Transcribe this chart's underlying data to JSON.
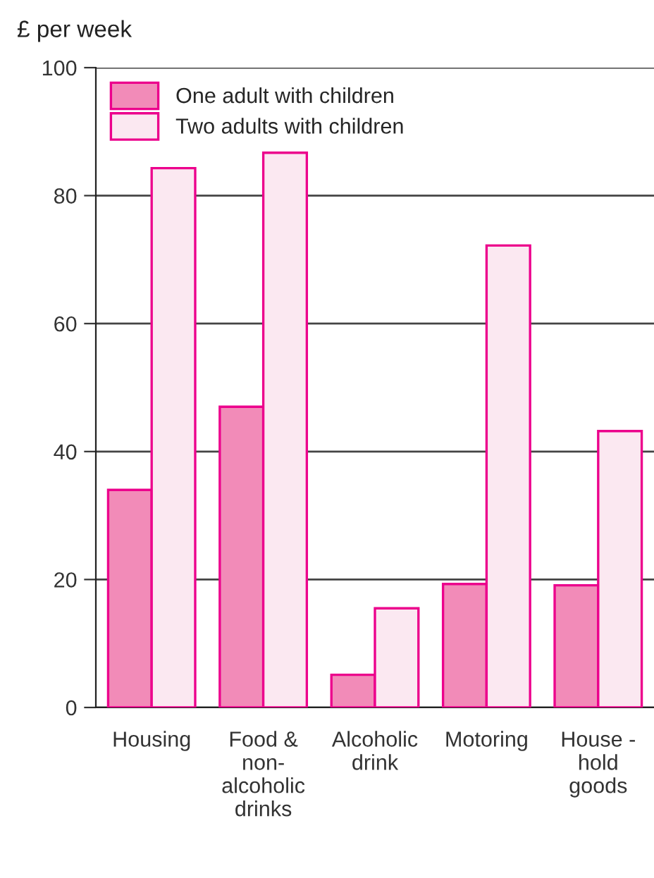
{
  "chart_data": {
    "type": "bar",
    "ylabel": "£ per week",
    "categories": [
      "Housing",
      "Food &\nnon-\nalcoholic\ndrinks",
      "Alcoholic\ndrink",
      "Motoring",
      "House -\nhold\ngoods"
    ],
    "series": [
      {
        "name": "One adult with children",
        "color": "#f28bb8",
        "values": [
          34,
          47,
          5.1,
          19.3,
          19.1
        ]
      },
      {
        "name": "Two adults with children",
        "color": "#fbe8f1",
        "values": [
          84.3,
          86.7,
          15.5,
          72.2,
          43.2
        ]
      }
    ],
    "ylim": [
      0,
      100
    ],
    "yticks": [
      0,
      20,
      40,
      60,
      80,
      100
    ],
    "grid": "y",
    "legend": "top left"
  }
}
